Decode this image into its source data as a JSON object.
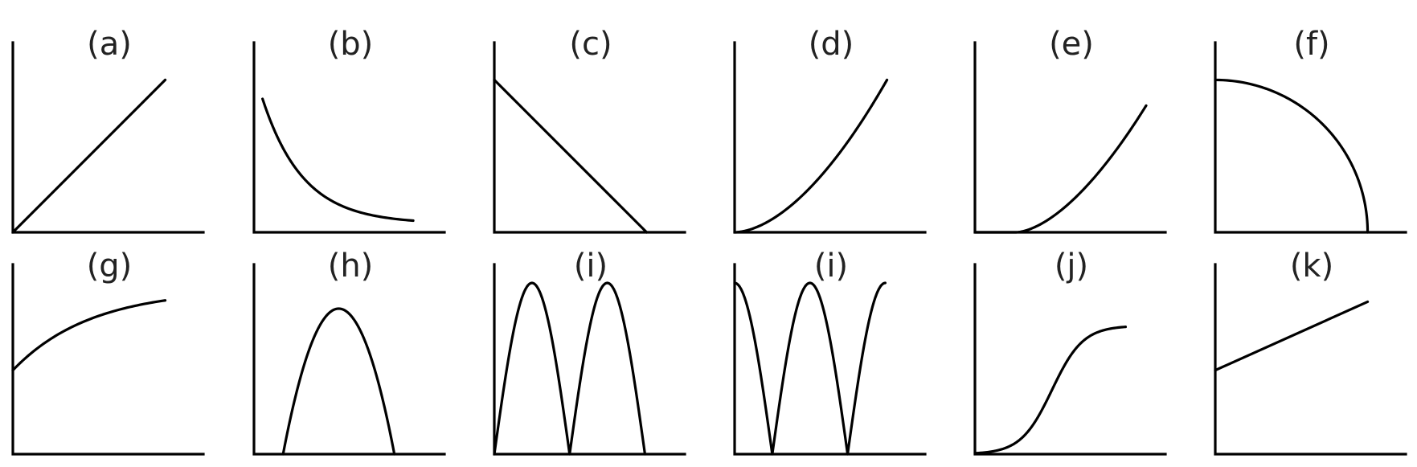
{
  "panels": [
    {
      "label": "(a)",
      "shape": "linear-increasing"
    },
    {
      "label": "(b)",
      "shape": "decaying"
    },
    {
      "label": "(c)",
      "shape": "linear-decreasing"
    },
    {
      "label": "(d)",
      "shape": "parabolic-increasing"
    },
    {
      "label": "(e)",
      "shape": "delayed-parabolic-increasing"
    },
    {
      "label": "(f)",
      "shape": "quarter-circle"
    },
    {
      "label": "(g)",
      "shape": "saturating-increase-with-intercept"
    },
    {
      "label": "(h)",
      "shape": "inverted-parabola"
    },
    {
      "label": "(i)",
      "shape": "double-arch"
    },
    {
      "label": "(i)",
      "shape": "double-valley"
    },
    {
      "label": "(j)",
      "shape": "sigmoid"
    },
    {
      "label": "(k)",
      "shape": "linear-with-intercept"
    }
  ],
  "colors": {
    "line": "#000000",
    "label": "#222222",
    "background": "#ffffff"
  }
}
